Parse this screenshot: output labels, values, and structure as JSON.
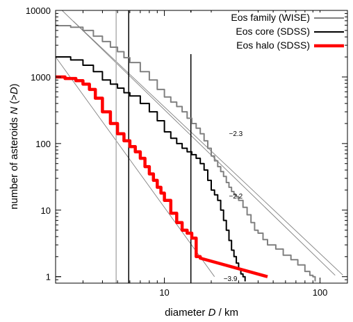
{
  "chart_data": {
    "type": "line",
    "title": "",
    "xlabel_parts": [
      "diameter ",
      "D",
      " / km"
    ],
    "ylabel_parts": [
      "number of asteroids ",
      "N",
      " (>",
      "D",
      ")"
    ],
    "xscale": "log",
    "yscale": "log",
    "xlim": [
      2,
      150
    ],
    "ylim": [
      0.8,
      10000
    ],
    "x_ticks": [
      10,
      100
    ],
    "x_tick_labels": [
      "10",
      "100"
    ],
    "y_ticks": [
      1,
      10,
      100,
      1000,
      10000
    ],
    "y_tick_labels": [
      "1",
      "10",
      "100",
      "1000",
      "10000"
    ],
    "grid": false,
    "legend": "top-right",
    "series": [
      {
        "name": "Eos family (WISE)",
        "color": "#808080",
        "width": "medium",
        "points": [
          [
            2,
            5900
          ],
          [
            2.5,
            5600
          ],
          [
            3,
            5000
          ],
          [
            3.5,
            4100
          ],
          [
            4,
            3400
          ],
          [
            4.5,
            2800
          ],
          [
            5,
            2400
          ],
          [
            5.5,
            1950
          ],
          [
            6,
            1650
          ],
          [
            7,
            1200
          ],
          [
            8,
            900
          ],
          [
            9,
            650
          ],
          [
            10,
            500
          ],
          [
            11,
            420
          ],
          [
            12,
            360
          ],
          [
            13,
            300
          ],
          [
            14,
            240
          ],
          [
            15,
            200
          ],
          [
            16,
            170
          ],
          [
            17,
            140
          ],
          [
            18,
            110
          ],
          [
            19,
            85
          ],
          [
            20,
            65
          ],
          [
            21,
            55
          ],
          [
            22,
            45
          ],
          [
            23,
            38
          ],
          [
            24,
            32
          ],
          [
            25,
            26
          ],
          [
            26,
            22
          ],
          [
            27,
            19
          ],
          [
            28,
            17
          ],
          [
            29,
            16
          ],
          [
            30,
            14
          ],
          [
            32,
            11
          ],
          [
            34,
            8.5
          ],
          [
            36,
            6.5
          ],
          [
            38,
            5
          ],
          [
            40,
            4.5
          ],
          [
            43,
            3.6
          ],
          [
            46,
            3
          ],
          [
            52,
            2.6
          ],
          [
            58,
            2.1
          ],
          [
            65,
            1.8
          ],
          [
            72,
            1.5
          ],
          [
            80,
            1.2
          ],
          [
            86,
            1.05
          ],
          [
            90,
            1.0
          ],
          [
            93,
            0.85
          ]
        ]
      },
      {
        "name": "Eos core (SDSS)",
        "color": "#000000",
        "width": "medium",
        "points": [
          [
            2,
            2000
          ],
          [
            2.5,
            1800
          ],
          [
            3,
            1500
          ],
          [
            3.5,
            1200
          ],
          [
            4,
            900
          ],
          [
            4.5,
            780
          ],
          [
            5,
            680
          ],
          [
            5.5,
            580
          ],
          [
            6,
            520
          ],
          [
            7,
            400
          ],
          [
            8,
            300
          ],
          [
            9,
            220
          ],
          [
            10,
            150
          ],
          [
            11,
            120
          ],
          [
            12,
            100
          ],
          [
            13,
            85
          ],
          [
            14,
            75
          ],
          [
            15,
            68
          ],
          [
            16,
            60
          ],
          [
            17,
            50
          ],
          [
            18,
            40
          ],
          [
            19,
            28
          ],
          [
            20,
            20
          ],
          [
            21,
            17
          ],
          [
            22,
            14
          ],
          [
            23,
            10
          ],
          [
            24,
            7
          ],
          [
            25,
            5
          ],
          [
            26,
            3.5
          ],
          [
            27,
            2.5
          ],
          [
            28,
            2
          ],
          [
            29,
            1.6
          ],
          [
            30,
            1.3
          ],
          [
            31,
            1.1
          ],
          [
            32,
            1.0
          ],
          [
            33,
            0.85
          ]
        ]
      },
      {
        "name": "Eos halo (SDSS)",
        "color": "#ff0000",
        "width": "thick",
        "points": [
          [
            2,
            1000
          ],
          [
            2.3,
            950
          ],
          [
            2.7,
            880
          ],
          [
            3,
            780
          ],
          [
            3.3,
            650
          ],
          [
            3.6,
            480
          ],
          [
            4,
            300
          ],
          [
            4.5,
            200
          ],
          [
            5,
            140
          ],
          [
            5.5,
            110
          ],
          [
            6,
            90
          ],
          [
            6.5,
            75
          ],
          [
            7,
            60
          ],
          [
            7.5,
            45
          ],
          [
            8,
            35
          ],
          [
            8.5,
            28
          ],
          [
            9,
            22
          ],
          [
            9.5,
            18
          ],
          [
            10,
            14
          ],
          [
            11,
            9
          ],
          [
            12,
            6.5
          ],
          [
            13,
            5
          ],
          [
            14,
            4.5
          ],
          [
            15,
            3.8
          ],
          [
            16,
            2
          ],
          [
            17,
            1.9
          ],
          [
            46,
            1.0
          ]
        ]
      }
    ],
    "reference_lines": [
      {
        "label": "−2.3",
        "color": "#808080",
        "points": [
          [
            2.2,
            10000
          ],
          [
            125,
            1.05
          ]
        ]
      },
      {
        "label": "−2.2",
        "color": "#808080",
        "points": [
          [
            2.6,
            6900
          ],
          [
            140,
            1.06
          ]
        ]
      },
      {
        "label": "−3.9",
        "color": "#808080",
        "points": [
          [
            2,
            2000
          ],
          [
            21,
            1.0
          ]
        ]
      }
    ],
    "vertical_lines": [
      {
        "x": 4.9,
        "color": "#b0b0b0"
      },
      {
        "x": 5.9,
        "color": "#000000"
      },
      {
        "x": 14.8,
        "color": "#000000"
      }
    ],
    "slope_annotations": [
      {
        "text": "−2.3",
        "x": 26,
        "y": 140
      },
      {
        "text": "−2.2",
        "x": 26,
        "y": 16
      },
      {
        "text": "−3.9",
        "x": 24,
        "y": 0.92
      }
    ]
  }
}
